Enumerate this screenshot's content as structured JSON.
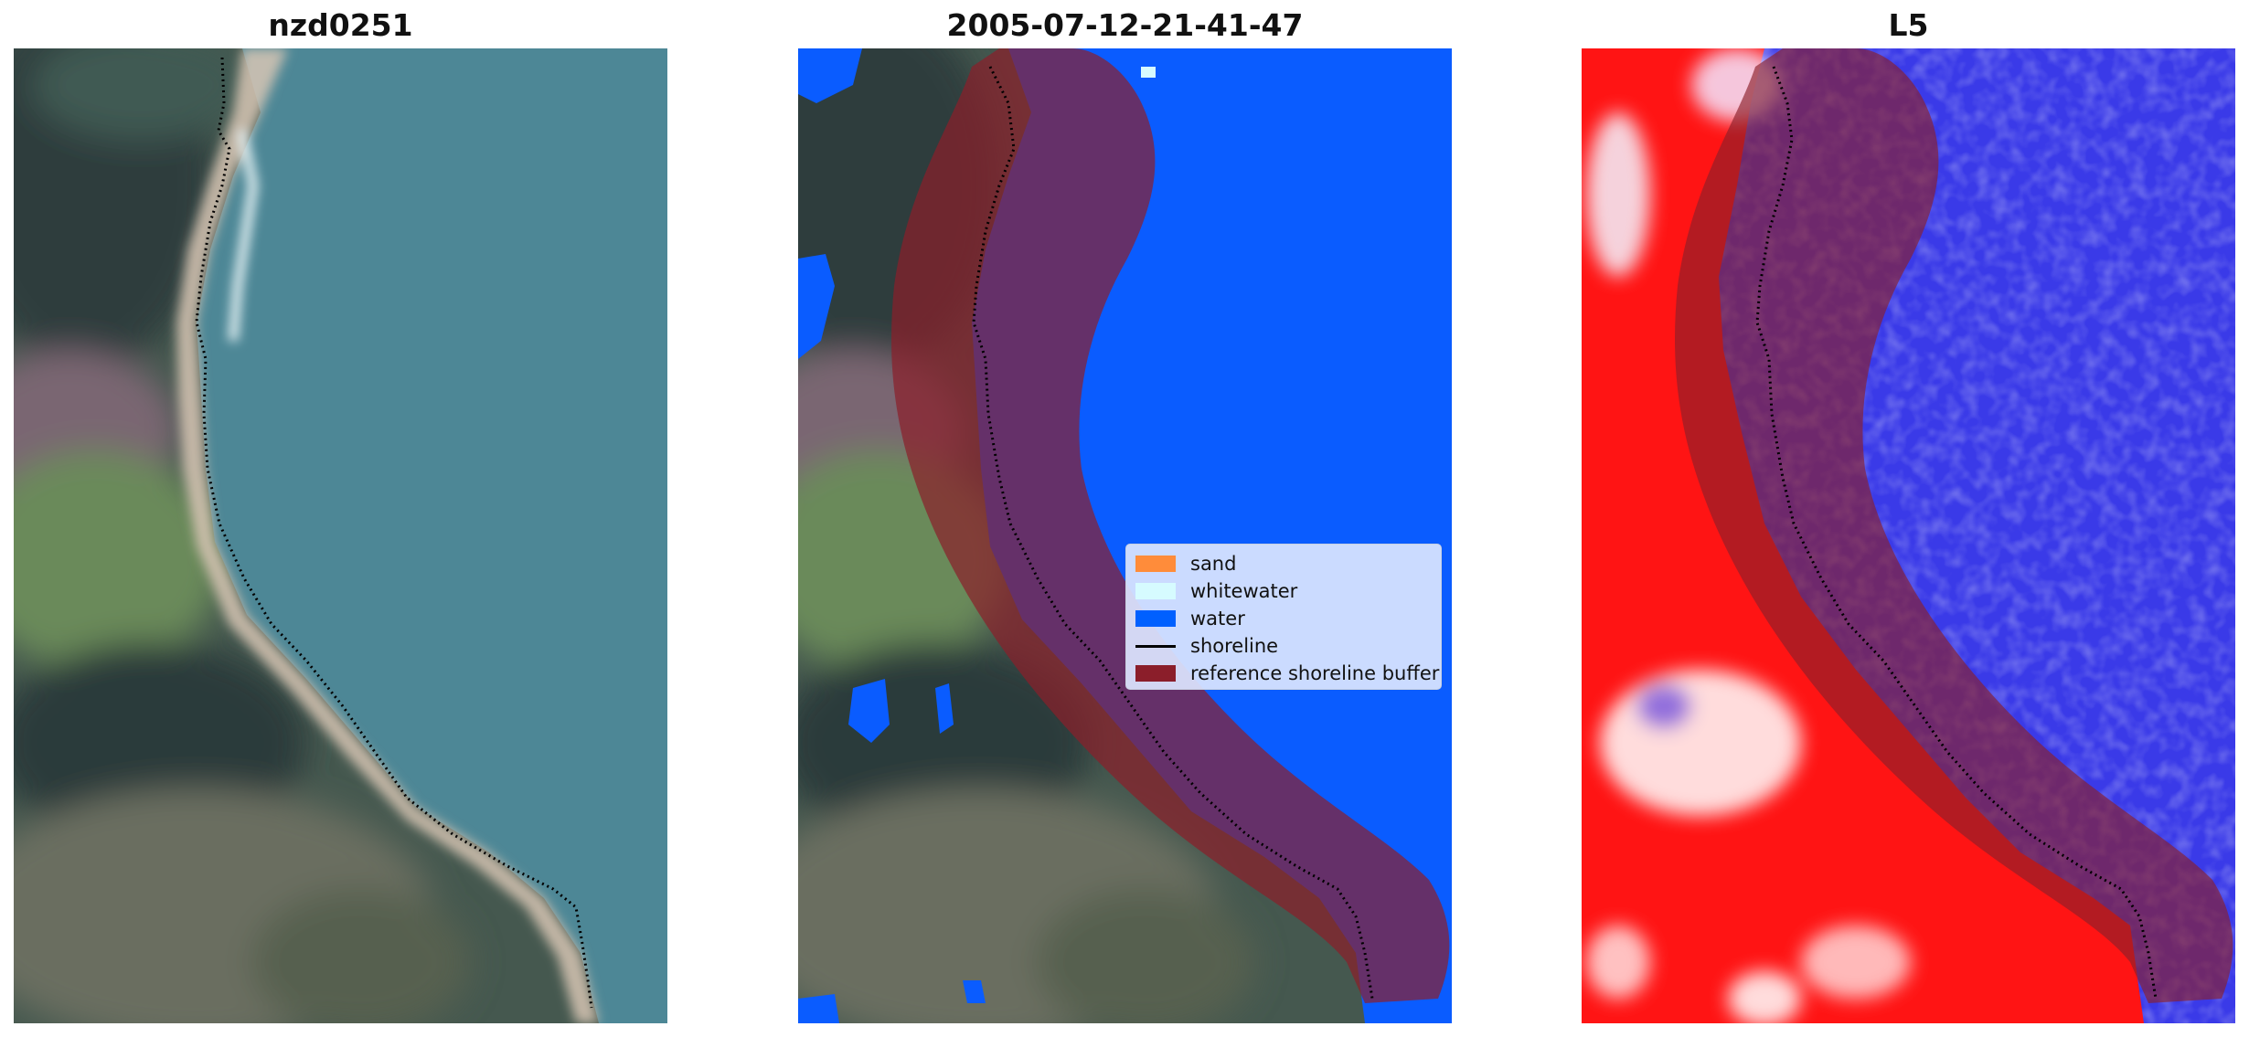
{
  "panels": [
    {
      "title": "nzd0251"
    },
    {
      "title": "2005-07-12-21-41-47"
    },
    {
      "title": "L5"
    }
  ],
  "legend": {
    "items": [
      {
        "label": "sand",
        "color": "#ff8c3a",
        "kind": "patch"
      },
      {
        "label": "whitewater",
        "color": "#d6fbff",
        "kind": "patch"
      },
      {
        "label": "water",
        "color": "#0060ff",
        "kind": "patch"
      },
      {
        "label": "shoreline",
        "color": "#000000",
        "kind": "line"
      },
      {
        "label": "reference shoreline buffer",
        "color": "#8b1e2a",
        "kind": "patch"
      }
    ]
  },
  "colors": {
    "ocean": "#4f8a99",
    "land_dark": "#3b4c4a",
    "vegetation": "#5f7f55",
    "water_mask": "#0a5cff",
    "buffer": "#8b1e2a",
    "index_red": "#ff1010",
    "index_blue": "#2a2ae0"
  }
}
